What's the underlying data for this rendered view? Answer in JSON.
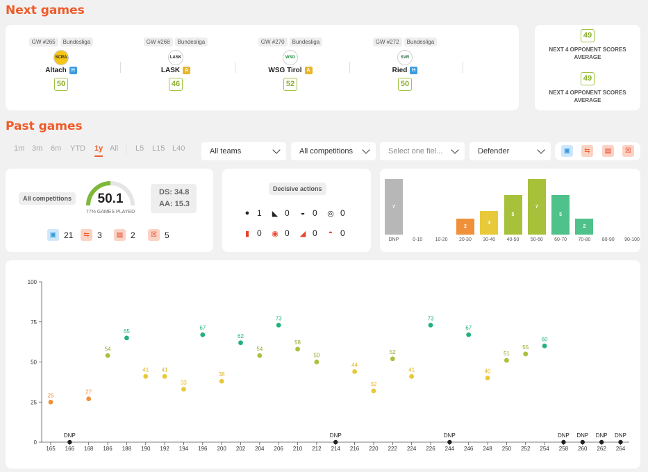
{
  "next_games": {
    "title": "Next games",
    "games": [
      {
        "gw": "GW #265",
        "comp": "Bundesliga",
        "team": "Altach",
        "venue": "H",
        "score": "50",
        "crest": "SCRA"
      },
      {
        "gw": "GW #268",
        "comp": "Bundesliga",
        "team": "LASK",
        "venue": "A",
        "score": "46",
        "crest": "LASK"
      },
      {
        "gw": "GW #270",
        "comp": "Bundesliga",
        "team": "WSG Tirol",
        "venue": "A",
        "score": "52",
        "crest": "WSG"
      },
      {
        "gw": "GW #272",
        "comp": "Bundesliga",
        "team": "Ried",
        "venue": "H",
        "score": "50",
        "crest": "SVR"
      }
    ],
    "averages": [
      {
        "score": "49",
        "label": "NEXT 4 OPPONENT SCORES AVERAGE"
      },
      {
        "score": "49",
        "label": "NEXT 4 OPPONENT SCORES AVERAGE"
      }
    ]
  },
  "past_games": {
    "title": "Past games",
    "ranges": [
      "1m",
      "3m",
      "6m",
      "YTD",
      "1y",
      "All"
    ],
    "ranges2": [
      "L5",
      "L15",
      "L40"
    ],
    "active_range": "1y",
    "selects": [
      "All teams",
      "All competitions",
      "Select one fiel...",
      "Defender"
    ]
  },
  "summary": {
    "competition": "All competitions",
    "avg": "50.1",
    "games_played": "77% GAMES PLAYED",
    "ds": "DS: 34.8",
    "aa": "AA: 15.3",
    "counts": [
      {
        "icon": "shirt-icon",
        "value": "21"
      },
      {
        "icon": "substitution-icon",
        "value": "3"
      },
      {
        "icon": "bench-icon",
        "value": "2"
      },
      {
        "icon": "not-in-squad-icon",
        "value": "5"
      }
    ]
  },
  "decisive": {
    "title": "Decisive actions",
    "items": [
      {
        "icon": "goal-icon",
        "value": "1"
      },
      {
        "icon": "assist-boot-icon",
        "value": "0"
      },
      {
        "icon": "penalty-won-icon",
        "value": "0"
      },
      {
        "icon": "clean-sheet-icon",
        "value": "0"
      },
      {
        "icon": "red-card-icon",
        "value": "0"
      },
      {
        "icon": "own-goal-icon",
        "value": "0"
      },
      {
        "icon": "error-icon",
        "value": "0"
      },
      {
        "icon": "penalty-conceded-icon",
        "value": "0"
      }
    ]
  },
  "distribution": {
    "bins": [
      "DNP",
      "0-10",
      "10-20",
      "20-30",
      "30-40",
      "40-50",
      "50-60",
      "60-70",
      "70-80",
      "80-90",
      "90-100"
    ],
    "counts": [
      7,
      0,
      0,
      2,
      3,
      5,
      7,
      5,
      2,
      0,
      0
    ],
    "colors": [
      "#b7b7b7",
      "#f05a28",
      "#f05a28",
      "#f0913a",
      "#e8c93a",
      "#a7c13b",
      "#a7c13b",
      "#4fc18a",
      "#4fc18a",
      "#1fb27a",
      "#1fb27a"
    ]
  },
  "chart_data": {
    "type": "scatter",
    "ylim": [
      0,
      100
    ],
    "yticks": [
      0,
      25,
      50,
      75,
      100
    ],
    "x": [
      "165",
      "166",
      "168",
      "186",
      "188",
      "190",
      "192",
      "194",
      "196",
      "200",
      "202",
      "204",
      "206",
      "210",
      "212",
      "214",
      "216",
      "220",
      "222",
      "224",
      "226",
      "244",
      "246",
      "248",
      "250",
      "252",
      "254",
      "258",
      "260",
      "262",
      "264"
    ],
    "values": [
      25,
      "DNP",
      27,
      54,
      65,
      41,
      41,
      33,
      67,
      38,
      62,
      54,
      73,
      58,
      50,
      "DNP",
      44,
      32,
      52,
      41,
      73,
      "DNP",
      67,
      40,
      51,
      55,
      60,
      "DNP",
      "DNP",
      "DNP",
      "DNP"
    ]
  }
}
